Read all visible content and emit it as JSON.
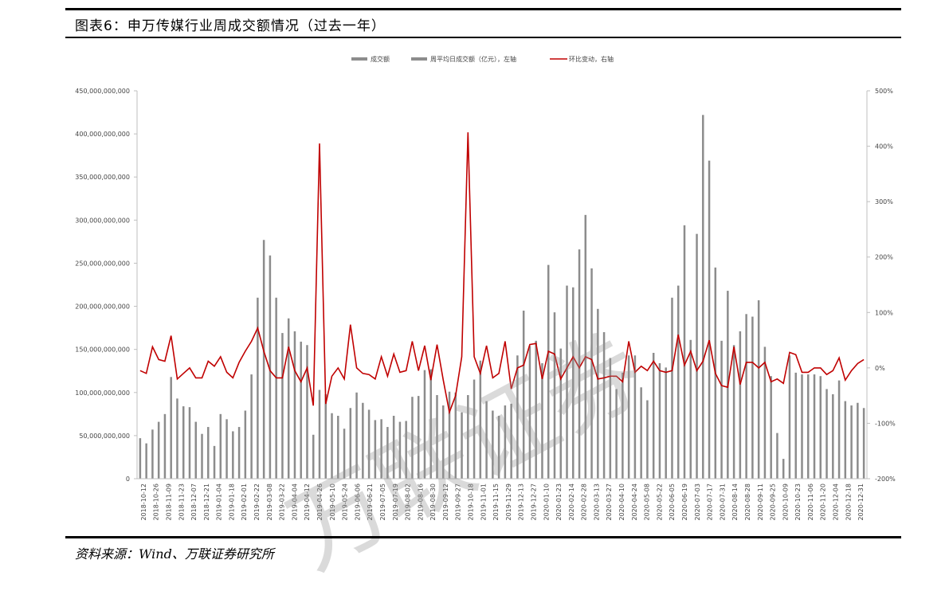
{
  "header": {
    "title": "图表6：申万传媒行业周成交额情况（过去一年）"
  },
  "footer": {
    "source": "资料来源：Wind、万联证券研究所"
  },
  "watermark": {
    "text": "万联证券"
  },
  "colors": {
    "bar": "#8c8c8c",
    "line": "#c00000",
    "axis": "#bfbfbf"
  },
  "chart_data": {
    "type": "bar",
    "legend": [
      "成交额",
      "周平均日成交额（亿元），左轴",
      "环比变动，右轴"
    ],
    "legend_position": "top",
    "left_axis": {
      "ylim": [
        0,
        450000000000
      ],
      "ticks": [
        "0",
        "50,000,000,000",
        "100,000,000,000",
        "150,000,000,000",
        "200,000,000,000",
        "250,000,000,000",
        "300,000,000,000",
        "350,000,000,000",
        "400,000,000,000",
        "450,000,000,000"
      ]
    },
    "right_axis": {
      "ylim": [
        -200,
        500
      ],
      "ticks": [
        "-200%",
        "-100%",
        "0%",
        "100%",
        "200%",
        "300%",
        "400%",
        "500%"
      ]
    },
    "grid": false,
    "x_labels": [
      "2018-10-12",
      "2018-10-26",
      "2018-11-09",
      "2018-11-23",
      "2018-12-07",
      "2018-12-21",
      "2019-01-04",
      "2019-01-18",
      "2019-02-01",
      "2019-02-22",
      "2019-03-08",
      "2019-03-22",
      "2019-04-04",
      "2019-04-12",
      "2019-04-26",
      "2019-05-10",
      "2019-05-24",
      "2019-06-06",
      "2019-06-21",
      "2019-07-05",
      "2019-07-19",
      "2019-08-02",
      "2019-08-16",
      "2019-08-30",
      "2019-09-12",
      "2019-09-27",
      "2019-10-18",
      "2019-11-01",
      "2019-11-15",
      "2019-11-29",
      "2019-12-13",
      "2019-12-27",
      "2020-01-10",
      "2020-01-23",
      "2020-02-14",
      "2020-02-28",
      "2020-03-13",
      "2020-03-27",
      "2020-04-10",
      "2020-04-24",
      "2020-05-08",
      "2020-05-22",
      "2020-06-05",
      "2020-06-19",
      "2020-07-03",
      "2020-07-17",
      "2020-07-31",
      "2020-08-14",
      "2020-08-28",
      "2020-09-11",
      "2020-09-25",
      "2020-10-09",
      "2020-10-23",
      "2020-11-06",
      "2020-11-20",
      "2020-12-04",
      "2020-12-18",
      "2020-12-31"
    ],
    "bar_values": [
      47,
      41,
      57,
      66,
      75,
      118,
      93,
      84,
      83,
      66,
      52,
      60,
      38,
      75,
      69,
      55,
      60,
      79,
      121,
      210,
      277,
      259,
      210,
      169,
      186,
      171,
      159,
      155,
      51,
      103,
      98,
      76,
      73,
      58,
      82,
      100,
      88,
      80,
      68,
      69,
      60,
      73,
      66,
      67,
      95,
      96,
      126,
      127,
      97,
      85,
      101,
      100,
      77,
      97,
      115,
      137,
      90,
      79,
      73,
      85,
      87,
      143,
      195,
      154,
      160,
      134,
      248,
      193,
      151,
      224,
      222,
      266,
      306,
      244,
      197,
      170,
      140,
      104,
      123,
      143,
      143,
      106,
      91,
      146,
      134,
      129,
      210,
      224,
      294,
      161,
      284,
      422,
      369,
      245,
      160,
      218,
      155,
      171,
      191,
      188,
      207,
      153,
      119,
      53,
      23,
      143,
      123,
      121,
      121,
      121,
      119,
      104,
      98,
      114,
      90,
      85,
      88,
      82
    ],
    "series": [
      {
        "name": "环比变动，右轴",
        "values": [
          -5,
          -10,
          38,
          15,
          12,
          58,
          -20,
          -10,
          0,
          -18,
          -18,
          12,
          3,
          20,
          -8,
          -18,
          10,
          30,
          48,
          72,
          30,
          -5,
          -18,
          -18,
          38,
          -5,
          -25,
          0,
          -68,
          405,
          -65,
          -15,
          0,
          -20,
          78,
          0,
          -10,
          -12,
          -20,
          20,
          -15,
          25,
          -8,
          -5,
          48,
          -5,
          40,
          -22,
          42,
          -22,
          -80,
          -50,
          20,
          425,
          20,
          -10,
          40,
          -18,
          -10,
          48,
          -38,
          0,
          5,
          42,
          44,
          -20,
          30,
          25,
          -20,
          0,
          20,
          0,
          20,
          15,
          -20,
          -18,
          -15,
          -15,
          -25,
          48,
          -8,
          3,
          -5,
          12,
          -5,
          -8,
          -5,
          60,
          5,
          30,
          -5,
          12,
          50,
          -10,
          -32,
          -35,
          38,
          -30,
          10,
          10,
          0,
          10,
          -25,
          -20,
          -28,
          28,
          24,
          -8,
          -8,
          0,
          0,
          -12,
          -5,
          18,
          -22,
          -5,
          8,
          15
        ]
      }
    ]
  }
}
